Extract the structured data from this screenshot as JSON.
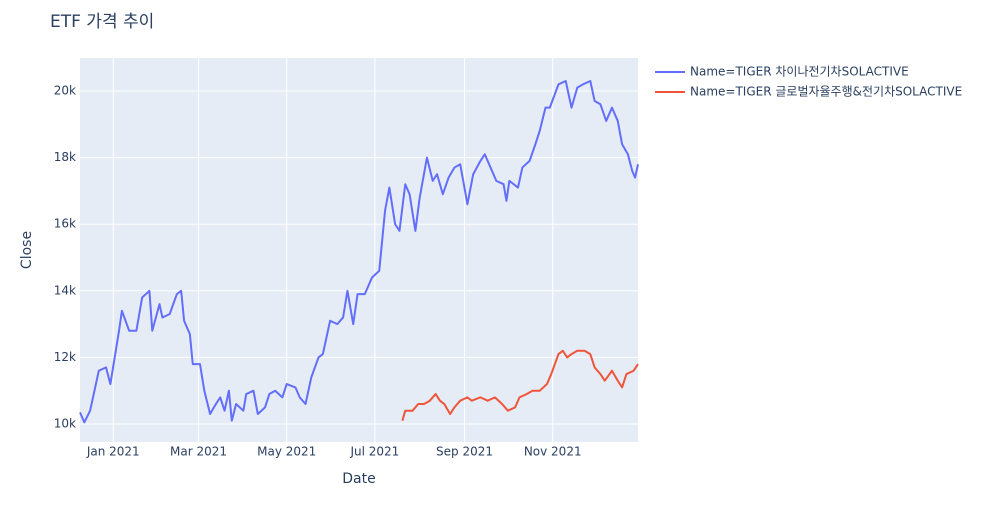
{
  "chart_data": {
    "type": "line",
    "title": "ETF 가격 추이",
    "x_label": "Date",
    "y_label": "Close",
    "xlim": [
      "2020-12-09",
      "2021-12-30"
    ],
    "xticks": [
      {
        "value": "2021-01-01",
        "label": "Jan 2021"
      },
      {
        "value": "2021-03-01",
        "label": "Mar 2021"
      },
      {
        "value": "2021-05-01",
        "label": "May 2021"
      },
      {
        "value": "2021-07-01",
        "label": "Jul 2021"
      },
      {
        "value": "2021-09-01",
        "label": "Sep 2021"
      },
      {
        "value": "2021-11-01",
        "label": "Nov 2021"
      }
    ],
    "ylim": [
      9460,
      20990
    ],
    "yticks": [
      {
        "value": 10000,
        "label": "10k"
      },
      {
        "value": 12000,
        "label": "12k"
      },
      {
        "value": 14000,
        "label": "14k"
      },
      {
        "value": 16000,
        "label": "16k"
      },
      {
        "value": 18000,
        "label": "18k"
      },
      {
        "value": 20000,
        "label": "20k"
      }
    ],
    "grid": true,
    "legend_position": "right",
    "background": "#e5ecf6",
    "series": [
      {
        "name": "Name=TIGER 차이나전기차SOLACTIVE",
        "color": "#636efa",
        "x": [
          "2020-12-09",
          "2020-12-12",
          "2020-12-16",
          "2020-12-22",
          "2020-12-27",
          "2020-12-30",
          "2021-01-05",
          "2021-01-07",
          "2021-01-12",
          "2021-01-17",
          "2021-01-21",
          "2021-01-26",
          "2021-01-28",
          "2021-02-02",
          "2021-02-04",
          "2021-02-09",
          "2021-02-14",
          "2021-02-17",
          "2021-02-19",
          "2021-02-23",
          "2021-02-25",
          "2021-03-02",
          "2021-03-05",
          "2021-03-09",
          "2021-03-13",
          "2021-03-16",
          "2021-03-19",
          "2021-03-22",
          "2021-03-24",
          "2021-03-27",
          "2021-04-01",
          "2021-04-03",
          "2021-04-08",
          "2021-04-11",
          "2021-04-16",
          "2021-04-19",
          "2021-04-23",
          "2021-04-28",
          "2021-05-01",
          "2021-05-07",
          "2021-05-10",
          "2021-05-14",
          "2021-05-18",
          "2021-05-23",
          "2021-05-26",
          "2021-05-31",
          "2021-06-05",
          "2021-06-09",
          "2021-06-12",
          "2021-06-16",
          "2021-06-19",
          "2021-06-24",
          "2021-06-29",
          "2021-07-04",
          "2021-07-08",
          "2021-07-11",
          "2021-07-15",
          "2021-07-18",
          "2021-07-22",
          "2021-07-25",
          "2021-07-29",
          "2021-08-01",
          "2021-08-06",
          "2021-08-10",
          "2021-08-13",
          "2021-08-17",
          "2021-08-21",
          "2021-08-25",
          "2021-08-29",
          "2021-09-03",
          "2021-09-07",
          "2021-09-12",
          "2021-09-15",
          "2021-09-19",
          "2021-09-23",
          "2021-09-28",
          "2021-09-30",
          "2021-10-02",
          "2021-10-08",
          "2021-10-11",
          "2021-10-16",
          "2021-10-20",
          "2021-10-23",
          "2021-10-27",
          "2021-10-30",
          "2021-11-05",
          "2021-11-10",
          "2021-11-14",
          "2021-11-18",
          "2021-11-22",
          "2021-11-27",
          "2021-11-30",
          "2021-12-04",
          "2021-12-08",
          "2021-12-12",
          "2021-12-16",
          "2021-12-19",
          "2021-12-23",
          "2021-12-26",
          "2021-12-28",
          "2021-12-30"
        ],
        "values": [
          10350,
          10050,
          10400,
          11600,
          11700,
          11200,
          12800,
          13400,
          12800,
          12800,
          13800,
          14000,
          12800,
          13600,
          13200,
          13300,
          13900,
          14000,
          13100,
          12700,
          11800,
          11800,
          11000,
          10300,
          10600,
          10800,
          10400,
          11000,
          10100,
          10600,
          10400,
          10900,
          11000,
          10300,
          10500,
          10900,
          11000,
          10800,
          11200,
          11100,
          10800,
          10600,
          11400,
          12000,
          12100,
          13100,
          13000,
          13200,
          14000,
          13000,
          13900,
          13900,
          14400,
          14600,
          16400,
          17100,
          16000,
          15800,
          17200,
          16900,
          15800,
          16800,
          18000,
          17300,
          17500,
          16900,
          17400,
          17700,
          17800,
          16600,
          17500,
          17900,
          18100,
          17700,
          17300,
          17200,
          16700,
          17300,
          17100,
          17700,
          17900,
          18400,
          18800,
          19500,
          19500,
          20200,
          20300,
          19500,
          20100,
          20200,
          20300,
          19700,
          19600,
          19100,
          19500,
          19100,
          18400,
          18100,
          17600,
          17400,
          17800
        ]
      },
      {
        "name": "Name=TIGER 글로벌자율주행&전기차SOLACTIVE",
        "color": "#ef553b",
        "x": [
          "2021-07-20",
          "2021-07-22",
          "2021-07-27",
          "2021-07-31",
          "2021-08-04",
          "2021-08-08",
          "2021-08-12",
          "2021-08-15",
          "2021-08-18",
          "2021-08-22",
          "2021-08-25",
          "2021-08-29",
          "2021-09-03",
          "2021-09-06",
          "2021-09-12",
          "2021-09-17",
          "2021-09-22",
          "2021-09-27",
          "2021-10-01",
          "2021-10-06",
          "2021-10-09",
          "2021-10-14",
          "2021-10-18",
          "2021-10-23",
          "2021-10-28",
          "2021-10-31",
          "2021-11-05",
          "2021-11-08",
          "2021-11-11",
          "2021-11-14",
          "2021-11-18",
          "2021-11-23",
          "2021-11-27",
          "2021-11-30",
          "2021-12-04",
          "2021-12-07",
          "2021-12-12",
          "2021-12-16",
          "2021-12-19",
          "2021-12-22",
          "2021-12-27",
          "2021-12-30"
        ],
        "values": [
          10100,
          10400,
          10400,
          10600,
          10600,
          10700,
          10900,
          10700,
          10600,
          10300,
          10500,
          10700,
          10800,
          10700,
          10800,
          10700,
          10800,
          10600,
          10400,
          10500,
          10800,
          10900,
          11000,
          11000,
          11200,
          11500,
          12100,
          12200,
          12000,
          12100,
          12200,
          12200,
          12100,
          11700,
          11500,
          11300,
          11600,
          11300,
          11100,
          11500,
          11600,
          11800
        ]
      }
    ]
  }
}
